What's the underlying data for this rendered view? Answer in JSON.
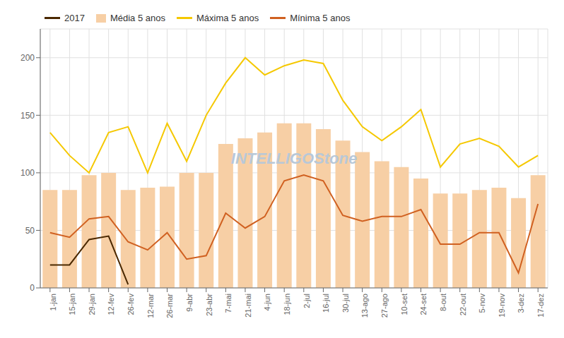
{
  "chart_data": {
    "type": "bar",
    "categories": [
      "1-jan",
      "15-jan",
      "29-jan",
      "12-fev",
      "26-fev",
      "12-mar",
      "26-mar",
      "9-abr",
      "23-abr",
      "7-mai",
      "21-mai",
      "4-jun",
      "18-jun",
      "2-jul",
      "16-jul",
      "30-jul",
      "13-ago",
      "27-ago",
      "10-set",
      "24-set",
      "8-out",
      "22-out",
      "5-nov",
      "19-nov",
      "3-dez",
      "17-dez"
    ],
    "series": [
      {
        "name": "2017",
        "type": "line",
        "color": "#4A2800",
        "values": [
          20,
          20,
          42,
          45,
          3,
          null,
          null,
          null,
          null,
          null,
          null,
          null,
          null,
          null,
          null,
          null,
          null,
          null,
          null,
          null,
          null,
          null,
          null,
          null,
          null,
          null
        ]
      },
      {
        "name": "Média 5 anos",
        "type": "bar",
        "color": "#F7CFA5",
        "values": [
          85,
          85,
          98,
          100,
          85,
          87,
          88,
          100,
          100,
          125,
          130,
          135,
          143,
          143,
          138,
          128,
          118,
          110,
          105,
          95,
          82,
          82,
          85,
          87,
          78,
          98
        ]
      },
      {
        "name": "Máxima 5 anos",
        "type": "line",
        "color": "#F5C800",
        "values": [
          135,
          115,
          100,
          135,
          140,
          100,
          143,
          110,
          150,
          178,
          200,
          185,
          193,
          198,
          195,
          163,
          140,
          128,
          140,
          155,
          105,
          125,
          130,
          123,
          105,
          115
        ]
      },
      {
        "name": "Mínima 5 anos",
        "type": "line",
        "color": "#D06020",
        "values": [
          48,
          44,
          60,
          62,
          40,
          33,
          48,
          25,
          28,
          65,
          52,
          62,
          93,
          98,
          93,
          63,
          58,
          62,
          62,
          68,
          38,
          38,
          48,
          48,
          13,
          73
        ]
      }
    ],
    "ylim": [
      0,
      225
    ],
    "yticks": [
      0,
      50,
      100,
      150,
      200
    ],
    "grid": true,
    "legend": "upper left",
    "annotations": [
      "INTELLIGOStone"
    ]
  }
}
